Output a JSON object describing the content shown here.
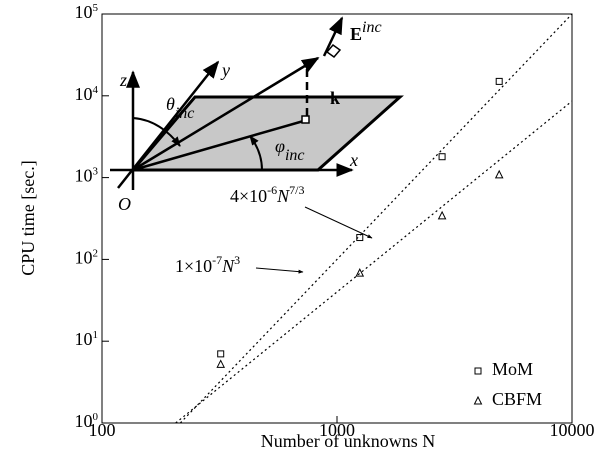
{
  "chart_data": {
    "type": "scatter",
    "xlabel": "Number of unknowns N",
    "ylabel": "CPU time [sec.]",
    "xlim": [
      100,
      10000
    ],
    "ylim": [
      1,
      100000
    ],
    "log_x": true,
    "log_y": true,
    "xticks": [
      100,
      1000,
      10000
    ],
    "yticks": [
      {
        "value": 1,
        "label": "10^0"
      },
      {
        "value": 10,
        "label": "10^1"
      },
      {
        "value": 100,
        "label": "10^2"
      },
      {
        "value": 1000,
        "label": "10^3"
      },
      {
        "value": 10000,
        "label": "10^4"
      },
      {
        "value": 100000,
        "label": "10^5"
      }
    ],
    "legend": "lower right",
    "series": [
      {
        "name": "MoM",
        "marker": "square",
        "color": "#000000",
        "x": [
          320,
          1250,
          2800,
          4900
        ],
        "values": [
          7,
          185,
          1800,
          15000
        ]
      },
      {
        "name": "CBFM",
        "marker": "triangle",
        "color": "#000000",
        "x": [
          320,
          1250,
          2800,
          4900
        ],
        "values": [
          5.2,
          68,
          340,
          1080
        ]
      }
    ],
    "fit_lines": [
      {
        "x": [
          215.4,
          10000
        ],
        "values": [
          1,
          100000
        ]
      },
      {
        "x": [
          205.8,
          10000
        ],
        "values": [
          1,
          8617
        ]
      }
    ],
    "annotations": [
      {
        "parts": [
          "4×10",
          "-6",
          "N",
          "7/3"
        ],
        "style": [
          "normal",
          "sup",
          "italic",
          "sup"
        ]
      },
      {
        "parts": [
          "1×10",
          "-7",
          "N",
          "3"
        ],
        "style": [
          "normal",
          "sup",
          "italic",
          "sup"
        ]
      }
    ]
  },
  "inset": {
    "labels": [
      "z",
      "y",
      "x",
      "O",
      "k",
      "E",
      "inc",
      "θ",
      "inc",
      "φ",
      "inc"
    ]
  }
}
